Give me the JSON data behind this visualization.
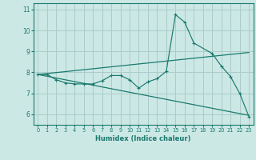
{
  "bg_color": "#cce8e5",
  "grid_color": "#aaccca",
  "line_color": "#1a7a6e",
  "xlabel": "Humidex (Indice chaleur)",
  "xlim": [
    -0.5,
    23.5
  ],
  "ylim": [
    5.5,
    11.3
  ],
  "yticks": [
    6,
    7,
    8,
    9,
    10,
    11
  ],
  "xticks": [
    0,
    1,
    2,
    3,
    4,
    5,
    6,
    7,
    8,
    9,
    10,
    11,
    12,
    13,
    14,
    15,
    16,
    17,
    18,
    19,
    20,
    21,
    22,
    23
  ],
  "line1_x": [
    0,
    1,
    2,
    3,
    4,
    5,
    6,
    7,
    8,
    9,
    10,
    11,
    12,
    13,
    14,
    15,
    16,
    17,
    19,
    20,
    21,
    22,
    23
  ],
  "line1_y": [
    7.9,
    7.9,
    7.65,
    7.5,
    7.45,
    7.45,
    7.45,
    7.6,
    7.85,
    7.85,
    7.65,
    7.25,
    7.55,
    7.7,
    8.05,
    10.75,
    10.4,
    9.4,
    8.9,
    8.3,
    7.8,
    7.0,
    5.9
  ],
  "line2_x": [
    0,
    23
  ],
  "line2_y": [
    7.9,
    8.95
  ],
  "line3_x": [
    0,
    23
  ],
  "line3_y": [
    7.9,
    5.95
  ]
}
